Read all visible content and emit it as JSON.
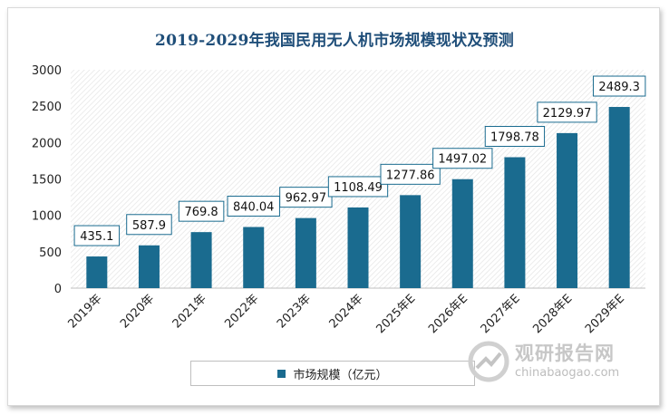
{
  "chart_data": {
    "type": "bar",
    "title": "2019-2029年我国民用无人机市场规模现状及预测",
    "categories": [
      "2019年",
      "2020年",
      "2021年",
      "2022年",
      "2023年",
      "2024年",
      "2025年E",
      "2026年E",
      "2027年E",
      "2028年E",
      "2029年E"
    ],
    "series": [
      {
        "name": "市场规模（亿元）",
        "values": [
          435.1,
          587.9,
          769.8,
          840.04,
          962.97,
          1108.49,
          1277.86,
          1497.02,
          1798.78,
          2129.97,
          2489.3
        ]
      }
    ],
    "value_labels": [
      "435.1",
      "587.9",
      "769.8",
      "840.04",
      "962.97",
      "1108.49",
      "1277.86",
      "1497.02",
      "1798.78",
      "2129.97",
      "2489.3"
    ],
    "yticks": [
      "0",
      "500",
      "1000",
      "1500",
      "2000",
      "2500",
      "3000"
    ],
    "ylim": [
      0,
      3000
    ],
    "grid": true,
    "legend_position": "bottom",
    "colors": {
      "bar": "#1a6b8f",
      "title": "#1f4e79",
      "label_border": "#1a6b8f"
    }
  },
  "watermark": {
    "cn": "观研报告网",
    "url": "chinabaogao.com"
  }
}
